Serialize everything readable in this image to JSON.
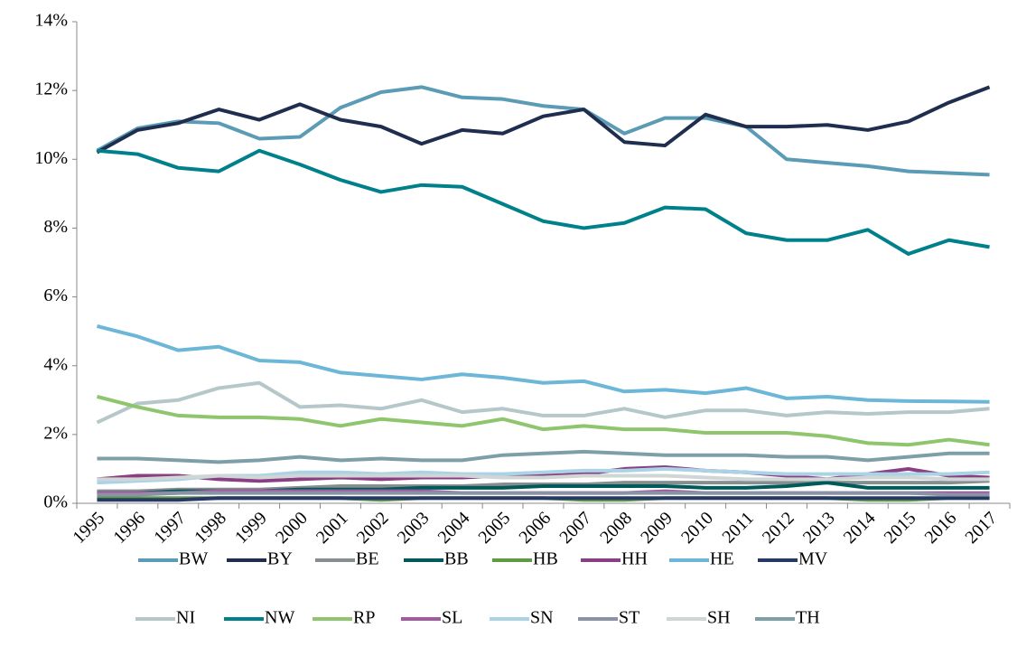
{
  "chart_data": {
    "type": "line",
    "categories": [
      "1995",
      "1996",
      "1997",
      "1998",
      "1999",
      "2000",
      "2001",
      "2002",
      "2003",
      "2004",
      "2005",
      "2006",
      "2007",
      "2008",
      "2009",
      "2010",
      "2011",
      "2012",
      "2013",
      "2014",
      "2015",
      "2016",
      "2017"
    ],
    "ylim": [
      0,
      14
    ],
    "yticks": [
      {
        "value": 0,
        "label": "0%"
      },
      {
        "value": 2,
        "label": "2%"
      },
      {
        "value": 4,
        "label": "4%"
      },
      {
        "value": 6,
        "label": "6%"
      },
      {
        "value": 8,
        "label": "8%"
      },
      {
        "value": 10,
        "label": "10%"
      },
      {
        "value": 12,
        "label": "12%"
      },
      {
        "value": 14,
        "label": "14%"
      }
    ],
    "grid": false,
    "legend": "bottom",
    "series": [
      {
        "name": "BW",
        "color": "#5b9bb5",
        "values": [
          10.25,
          10.9,
          11.1,
          11.05,
          10.6,
          10.65,
          11.5,
          11.95,
          12.1,
          11.8,
          11.75,
          11.55,
          11.45,
          10.75,
          11.2,
          11.2,
          10.95,
          10.0,
          9.9,
          9.8,
          9.65,
          9.6,
          9.55
        ]
      },
      {
        "name": "BY",
        "color": "#1f2d4f",
        "values": [
          10.2,
          10.85,
          11.05,
          11.45,
          11.15,
          11.6,
          11.15,
          10.95,
          10.45,
          10.85,
          10.75,
          11.25,
          11.45,
          10.5,
          10.4,
          11.3,
          10.95,
          10.95,
          11.0,
          10.85,
          11.1,
          11.65,
          12.1
        ]
      },
      {
        "name": "BE",
        "color": "#868e8f",
        "values": [
          0.35,
          0.35,
          0.4,
          0.4,
          0.4,
          0.45,
          0.5,
          0.5,
          0.5,
          0.5,
          0.55,
          0.55,
          0.55,
          0.6,
          0.6,
          0.6,
          0.6,
          0.6,
          0.6,
          0.6,
          0.6,
          0.6,
          0.65
        ]
      },
      {
        "name": "BB",
        "color": "#005a5a",
        "values": [
          0.3,
          0.3,
          0.35,
          0.35,
          0.35,
          0.4,
          0.4,
          0.4,
          0.45,
          0.45,
          0.45,
          0.5,
          0.5,
          0.5,
          0.5,
          0.45,
          0.45,
          0.5,
          0.6,
          0.45,
          0.45,
          0.45,
          0.45
        ]
      },
      {
        "name": "HB",
        "color": "#5f9a45",
        "values": [
          0.15,
          0.15,
          0.15,
          0.15,
          0.15,
          0.15,
          0.15,
          0.1,
          0.15,
          0.15,
          0.15,
          0.15,
          0.1,
          0.1,
          0.15,
          0.15,
          0.15,
          0.15,
          0.15,
          0.1,
          0.1,
          0.15,
          0.15
        ]
      },
      {
        "name": "HH",
        "color": "#8a3f82",
        "values": [
          0.7,
          0.8,
          0.8,
          0.7,
          0.65,
          0.7,
          0.75,
          0.7,
          0.75,
          0.75,
          0.8,
          0.8,
          0.85,
          1.0,
          1.05,
          0.95,
          0.9,
          0.8,
          0.7,
          0.85,
          1.0,
          0.8,
          0.75
        ]
      },
      {
        "name": "HE",
        "color": "#6cb6d8",
        "values": [
          5.15,
          4.85,
          4.45,
          4.55,
          4.15,
          4.1,
          3.8,
          3.7,
          3.6,
          3.75,
          3.65,
          3.5,
          3.55,
          3.25,
          3.3,
          3.2,
          3.35,
          3.05,
          3.1,
          3.0,
          2.97,
          2.96,
          2.95
        ]
      },
      {
        "name": "MV",
        "color": "#263866",
        "values": [
          0.1,
          0.1,
          0.1,
          0.15,
          0.15,
          0.15,
          0.15,
          0.15,
          0.15,
          0.15,
          0.15,
          0.15,
          0.15,
          0.15,
          0.15,
          0.15,
          0.15,
          0.15,
          0.15,
          0.15,
          0.15,
          0.15,
          0.15
        ]
      },
      {
        "name": "NI",
        "color": "#b6c7c9",
        "values": [
          2.35,
          2.9,
          3.0,
          3.35,
          3.5,
          2.8,
          2.85,
          2.75,
          3.0,
          2.65,
          2.75,
          2.55,
          2.55,
          2.75,
          2.5,
          2.7,
          2.7,
          2.55,
          2.65,
          2.6,
          2.65,
          2.65,
          2.75
        ]
      },
      {
        "name": "NW",
        "color": "#00808a",
        "values": [
          10.25,
          10.15,
          9.75,
          9.65,
          10.25,
          9.85,
          9.4,
          9.05,
          9.25,
          9.2,
          8.7,
          8.2,
          8.0,
          8.15,
          8.6,
          8.55,
          7.85,
          7.65,
          7.65,
          7.95,
          7.25,
          7.65,
          7.45
        ]
      },
      {
        "name": "RP",
        "color": "#8fc56d",
        "values": [
          3.1,
          2.8,
          2.55,
          2.5,
          2.5,
          2.45,
          2.25,
          2.45,
          2.35,
          2.25,
          2.45,
          2.15,
          2.25,
          2.15,
          2.15,
          2.05,
          2.05,
          2.05,
          1.95,
          1.75,
          1.7,
          1.85,
          1.7
        ]
      },
      {
        "name": "SL",
        "color": "#a45aa0",
        "values": [
          0.3,
          0.3,
          0.3,
          0.35,
          0.35,
          0.35,
          0.35,
          0.35,
          0.35,
          0.3,
          0.3,
          0.3,
          0.3,
          0.3,
          0.35,
          0.3,
          0.3,
          0.3,
          0.3,
          0.3,
          0.3,
          0.3,
          0.3
        ]
      },
      {
        "name": "SN",
        "color": "#aad3e6",
        "values": [
          0.6,
          0.65,
          0.7,
          0.8,
          0.8,
          0.9,
          0.9,
          0.85,
          0.9,
          0.85,
          0.85,
          0.9,
          0.95,
          0.95,
          1.0,
          0.95,
          0.9,
          0.85,
          0.85,
          0.85,
          0.85,
          0.85,
          0.9
        ]
      },
      {
        "name": "ST",
        "color": "#8a93a6",
        "values": [
          0.25,
          0.25,
          0.3,
          0.3,
          0.3,
          0.3,
          0.3,
          0.3,
          0.3,
          0.3,
          0.3,
          0.3,
          0.3,
          0.3,
          0.3,
          0.3,
          0.3,
          0.3,
          0.3,
          0.3,
          0.3,
          0.25,
          0.25
        ]
      },
      {
        "name": "SH",
        "color": "#d0d5d5",
        "values": [
          0.7,
          0.7,
          0.75,
          0.8,
          0.75,
          0.8,
          0.8,
          0.8,
          0.8,
          0.8,
          0.75,
          0.75,
          0.8,
          0.8,
          0.8,
          0.75,
          0.7,
          0.7,
          0.7,
          0.75,
          0.75,
          0.7,
          0.7
        ]
      },
      {
        "name": "TH",
        "color": "#7f9fa8",
        "values": [
          1.3,
          1.3,
          1.25,
          1.2,
          1.25,
          1.35,
          1.25,
          1.3,
          1.25,
          1.25,
          1.4,
          1.45,
          1.5,
          1.45,
          1.4,
          1.4,
          1.4,
          1.35,
          1.35,
          1.25,
          1.35,
          1.45,
          1.45
        ]
      }
    ]
  }
}
